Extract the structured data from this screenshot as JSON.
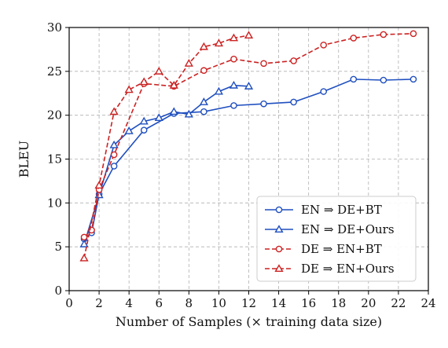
{
  "chart_data": {
    "type": "line",
    "xlabel": "Number of Samples (× training data size)",
    "ylabel": "BLEU",
    "xlim": [
      0,
      24
    ],
    "ylim": [
      0,
      30
    ],
    "xticks": [
      0,
      2,
      4,
      6,
      8,
      10,
      12,
      14,
      16,
      18,
      20,
      22,
      24
    ],
    "yticks": [
      0,
      5,
      10,
      15,
      20,
      25,
      30
    ],
    "grid": true,
    "legend_position": "lower-right",
    "series": [
      {
        "name": "EN ⇒ DE+BT",
        "color": "#1f4fbf",
        "line": "solid",
        "marker": "circle",
        "x": [
          1,
          1.5,
          2,
          3,
          5,
          7,
          9,
          11,
          13,
          15,
          17,
          19,
          21,
          23
        ],
        "y": [
          5.9,
          6.6,
          11.0,
          14.2,
          18.3,
          20.2,
          20.4,
          21.1,
          21.3,
          21.5,
          22.7,
          24.1,
          24.0,
          24.1
        ]
      },
      {
        "name": "EN ⇒ DE+Ours",
        "color": "#1f4fbf",
        "line": "solid",
        "marker": "triangle",
        "x": [
          1,
          2,
          3,
          4,
          5,
          6,
          7,
          8,
          9,
          10,
          11,
          12
        ],
        "y": [
          5.3,
          10.9,
          16.6,
          18.2,
          19.3,
          19.7,
          20.4,
          20.1,
          21.5,
          22.7,
          23.4,
          23.3
        ]
      },
      {
        "name": "DE ⇒ EN+BT",
        "color": "#cc2222",
        "line": "dashed",
        "marker": "circle",
        "x": [
          1,
          1.5,
          2,
          3,
          5,
          7,
          9,
          11,
          13,
          15,
          17,
          19,
          21,
          23
        ],
        "y": [
          6.1,
          6.9,
          11.5,
          15.5,
          23.6,
          23.3,
          25.1,
          26.4,
          25.9,
          26.2,
          28.0,
          28.8,
          29.2,
          29.3
        ]
      },
      {
        "name": "DE ⇒ EN+Ours",
        "color": "#cc2222",
        "line": "dashed",
        "marker": "triangle",
        "x": [
          1,
          2,
          3,
          4,
          5,
          6,
          7,
          8,
          9,
          10,
          11,
          12
        ],
        "y": [
          3.7,
          12.0,
          20.4,
          22.9,
          23.8,
          25.0,
          23.4,
          25.9,
          27.8,
          28.2,
          28.8,
          29.1
        ]
      }
    ]
  }
}
